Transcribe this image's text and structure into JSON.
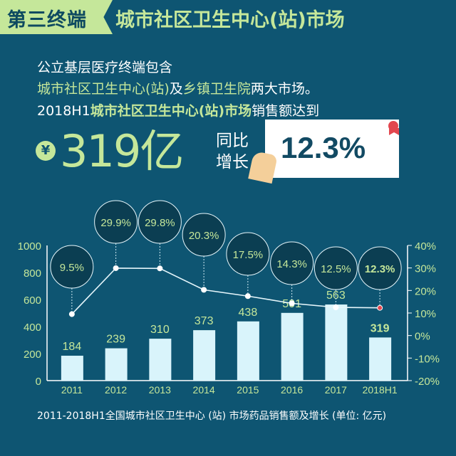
{
  "header": {
    "tab": "第三终端",
    "title": "城市社区卫生中心(站)市场"
  },
  "intro": {
    "line1": "公立基层医疗终端包含",
    "line2_a": "城市社区卫生中心(站)",
    "line2_b": "及",
    "line2_c": "乡镇卫生院",
    "line2_d": "两大市场。",
    "line3_a": "2018H1",
    "line3_b": "城市社区卫生中心(站)市场",
    "line3_c": "销售额达到"
  },
  "highlight": {
    "currency_icon": "¥",
    "amount": "319亿",
    "yoy_line1": "同比",
    "yoy_line2": "增长",
    "growth": "12.3%"
  },
  "colors": {
    "background": "#0e5572",
    "accent": "#c5e79a",
    "bar": "#d9f4fb",
    "highlight_point": "#e2474f"
  },
  "chart_data": {
    "type": "bar+line",
    "categories": [
      "2011",
      "2012",
      "2013",
      "2014",
      "2015",
      "2016",
      "2017",
      "2018H1"
    ],
    "series": [
      {
        "name": "销售额(亿元)",
        "type": "bar",
        "axis": "left",
        "values": [
          184,
          239,
          310,
          373,
          438,
          501,
          563,
          319
        ],
        "labels": [
          "184",
          "239",
          "310",
          "373",
          "438",
          "501",
          "563",
          "319"
        ]
      },
      {
        "name": "增长率",
        "type": "line",
        "axis": "right",
        "values": [
          9.5,
          29.9,
          29.8,
          20.3,
          17.5,
          14.3,
          12.5,
          12.3
        ],
        "labels": [
          "9.5%",
          "29.9%",
          "29.8%",
          "20.3%",
          "17.5%",
          "14.3%",
          "12.5%",
          "12.3%"
        ]
      }
    ],
    "y_left": {
      "range": [
        0,
        1000
      ],
      "ticks": [
        "0",
        "200",
        "400",
        "600",
        "800",
        "1000"
      ]
    },
    "y_right": {
      "range": [
        -20,
        40
      ],
      "ticks": [
        "-20%",
        "-10%",
        "0%",
        "10%",
        "20%",
        "30%",
        "40%"
      ]
    },
    "title": "2011-2018H1全国城市社区卫生中心 (站) 市场药品销售额及增长 (单位: 亿元)"
  }
}
